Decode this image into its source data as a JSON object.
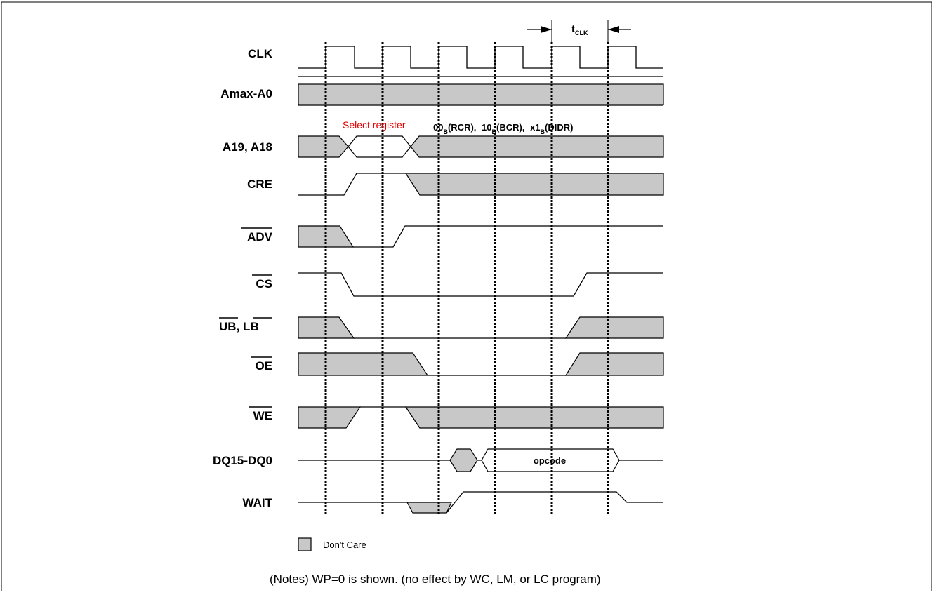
{
  "signals": [
    {
      "id": "clk",
      "label": "CLK",
      "overbar": false
    },
    {
      "id": "addr",
      "label": "Amax-A0",
      "overbar": false
    },
    {
      "id": "a19",
      "label": "A19, A18",
      "overbar": false
    },
    {
      "id": "cre",
      "label": "CRE",
      "overbar": false
    },
    {
      "id": "adv",
      "label": "ADV",
      "overbar": true
    },
    {
      "id": "cs",
      "label": "CS",
      "overbar": true
    },
    {
      "id": "ublb",
      "label_ub": "UB",
      "label_sep": ", ",
      "label_lb": "LB",
      "overbar": true
    },
    {
      "id": "oe",
      "label": "OE",
      "overbar": true
    },
    {
      "id": "we",
      "label": "WE",
      "overbar": true
    },
    {
      "id": "dq",
      "label": "DQ15-DQ0",
      "overbar": false
    },
    {
      "id": "wait",
      "label": "WAIT",
      "overbar": false
    }
  ],
  "annotations": {
    "select_register": "Select register",
    "reg_codes": [
      {
        "main": "00",
        "sub": "B",
        "tail": "(RCR),"
      },
      {
        "main": "10",
        "sub": "B",
        "tail": "(BCR),"
      },
      {
        "main": "x1",
        "sub": "B",
        "tail": "(DIDR)"
      }
    ],
    "tclk_main": "t",
    "tclk_sub": "CLK",
    "opcode": "opcode"
  },
  "legend": {
    "label": "Don't Care",
    "swatch_color": "#c8c8c8"
  },
  "notes": "(Notes) WP=0 is shown. (no effect by WC, LM, or LC program)"
}
